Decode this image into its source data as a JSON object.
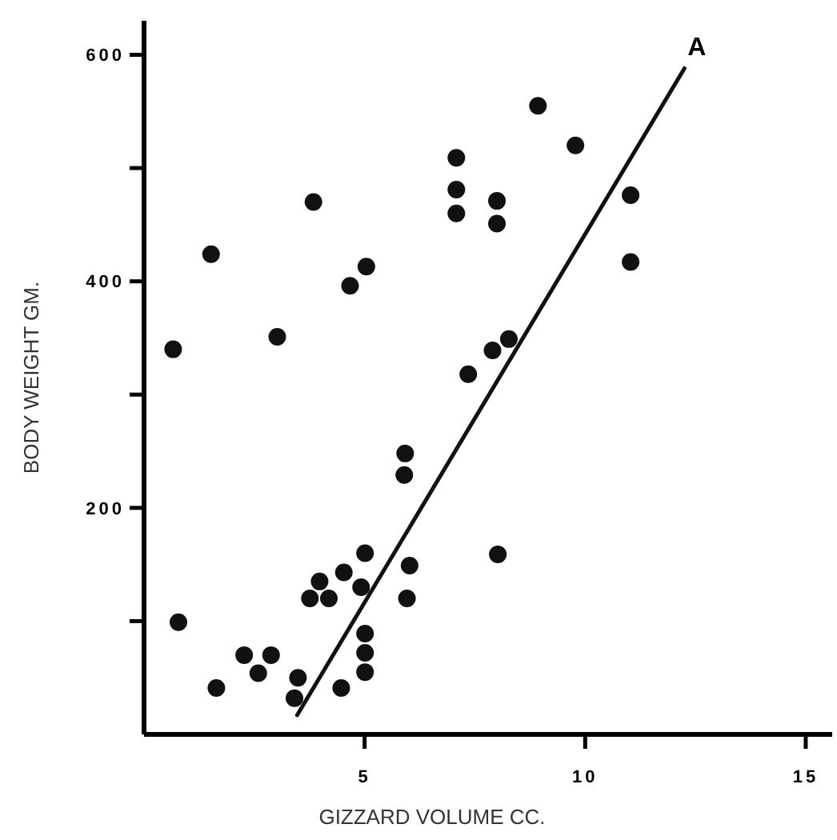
{
  "chart_data": {
    "type": "scatter",
    "xlabel": "GIZZARD VOLUME CC.",
    "ylabel": "BODY WEIGHT GM.",
    "xlim": [
      0,
      15.6
    ],
    "ylim": [
      0,
      630
    ],
    "xticks": [
      5,
      10,
      15
    ],
    "yticks": [
      {
        "value": 100,
        "label": null
      },
      200,
      {
        "value": 300,
        "label": null
      },
      400,
      {
        "value": 500,
        "label": null
      },
      600
    ],
    "grid": false,
    "series": [
      {
        "color": "#111111",
        "marker": "circle",
        "x": [
          8.93,
          9.78,
          7.08,
          7.08,
          7.08,
          8.0,
          8.0,
          11.03,
          11.03,
          3.84,
          1.52,
          5.04,
          4.67,
          3.02,
          0.66,
          7.9,
          8.27,
          7.35,
          5.92,
          5.9,
          8.02,
          5.01,
          6.02,
          5.96,
          4.53,
          3.98,
          3.76,
          4.19,
          4.92,
          5.01,
          5.01,
          5.01,
          4.47,
          3.49,
          3.41,
          0.78,
          2.27,
          2.88,
          2.59,
          1.64
        ],
        "values": [
          555,
          520,
          509,
          481,
          460,
          471,
          451,
          476,
          417,
          470,
          424,
          413,
          396,
          351,
          340,
          339,
          349,
          318,
          248,
          229,
          159,
          160,
          149,
          120,
          143,
          135,
          120,
          120,
          130,
          89,
          72,
          55,
          41,
          50,
          32,
          99,
          70,
          70,
          54,
          41
        ]
      },
      {
        "type": "line",
        "color": "#111111",
        "line_style": "solid",
        "x": [
          3.47,
          12.25
        ],
        "values": [
          17,
          588
        ]
      }
    ],
    "annotations": [
      {
        "text": "A",
        "x": 12.25,
        "y": 588
      }
    ]
  }
}
